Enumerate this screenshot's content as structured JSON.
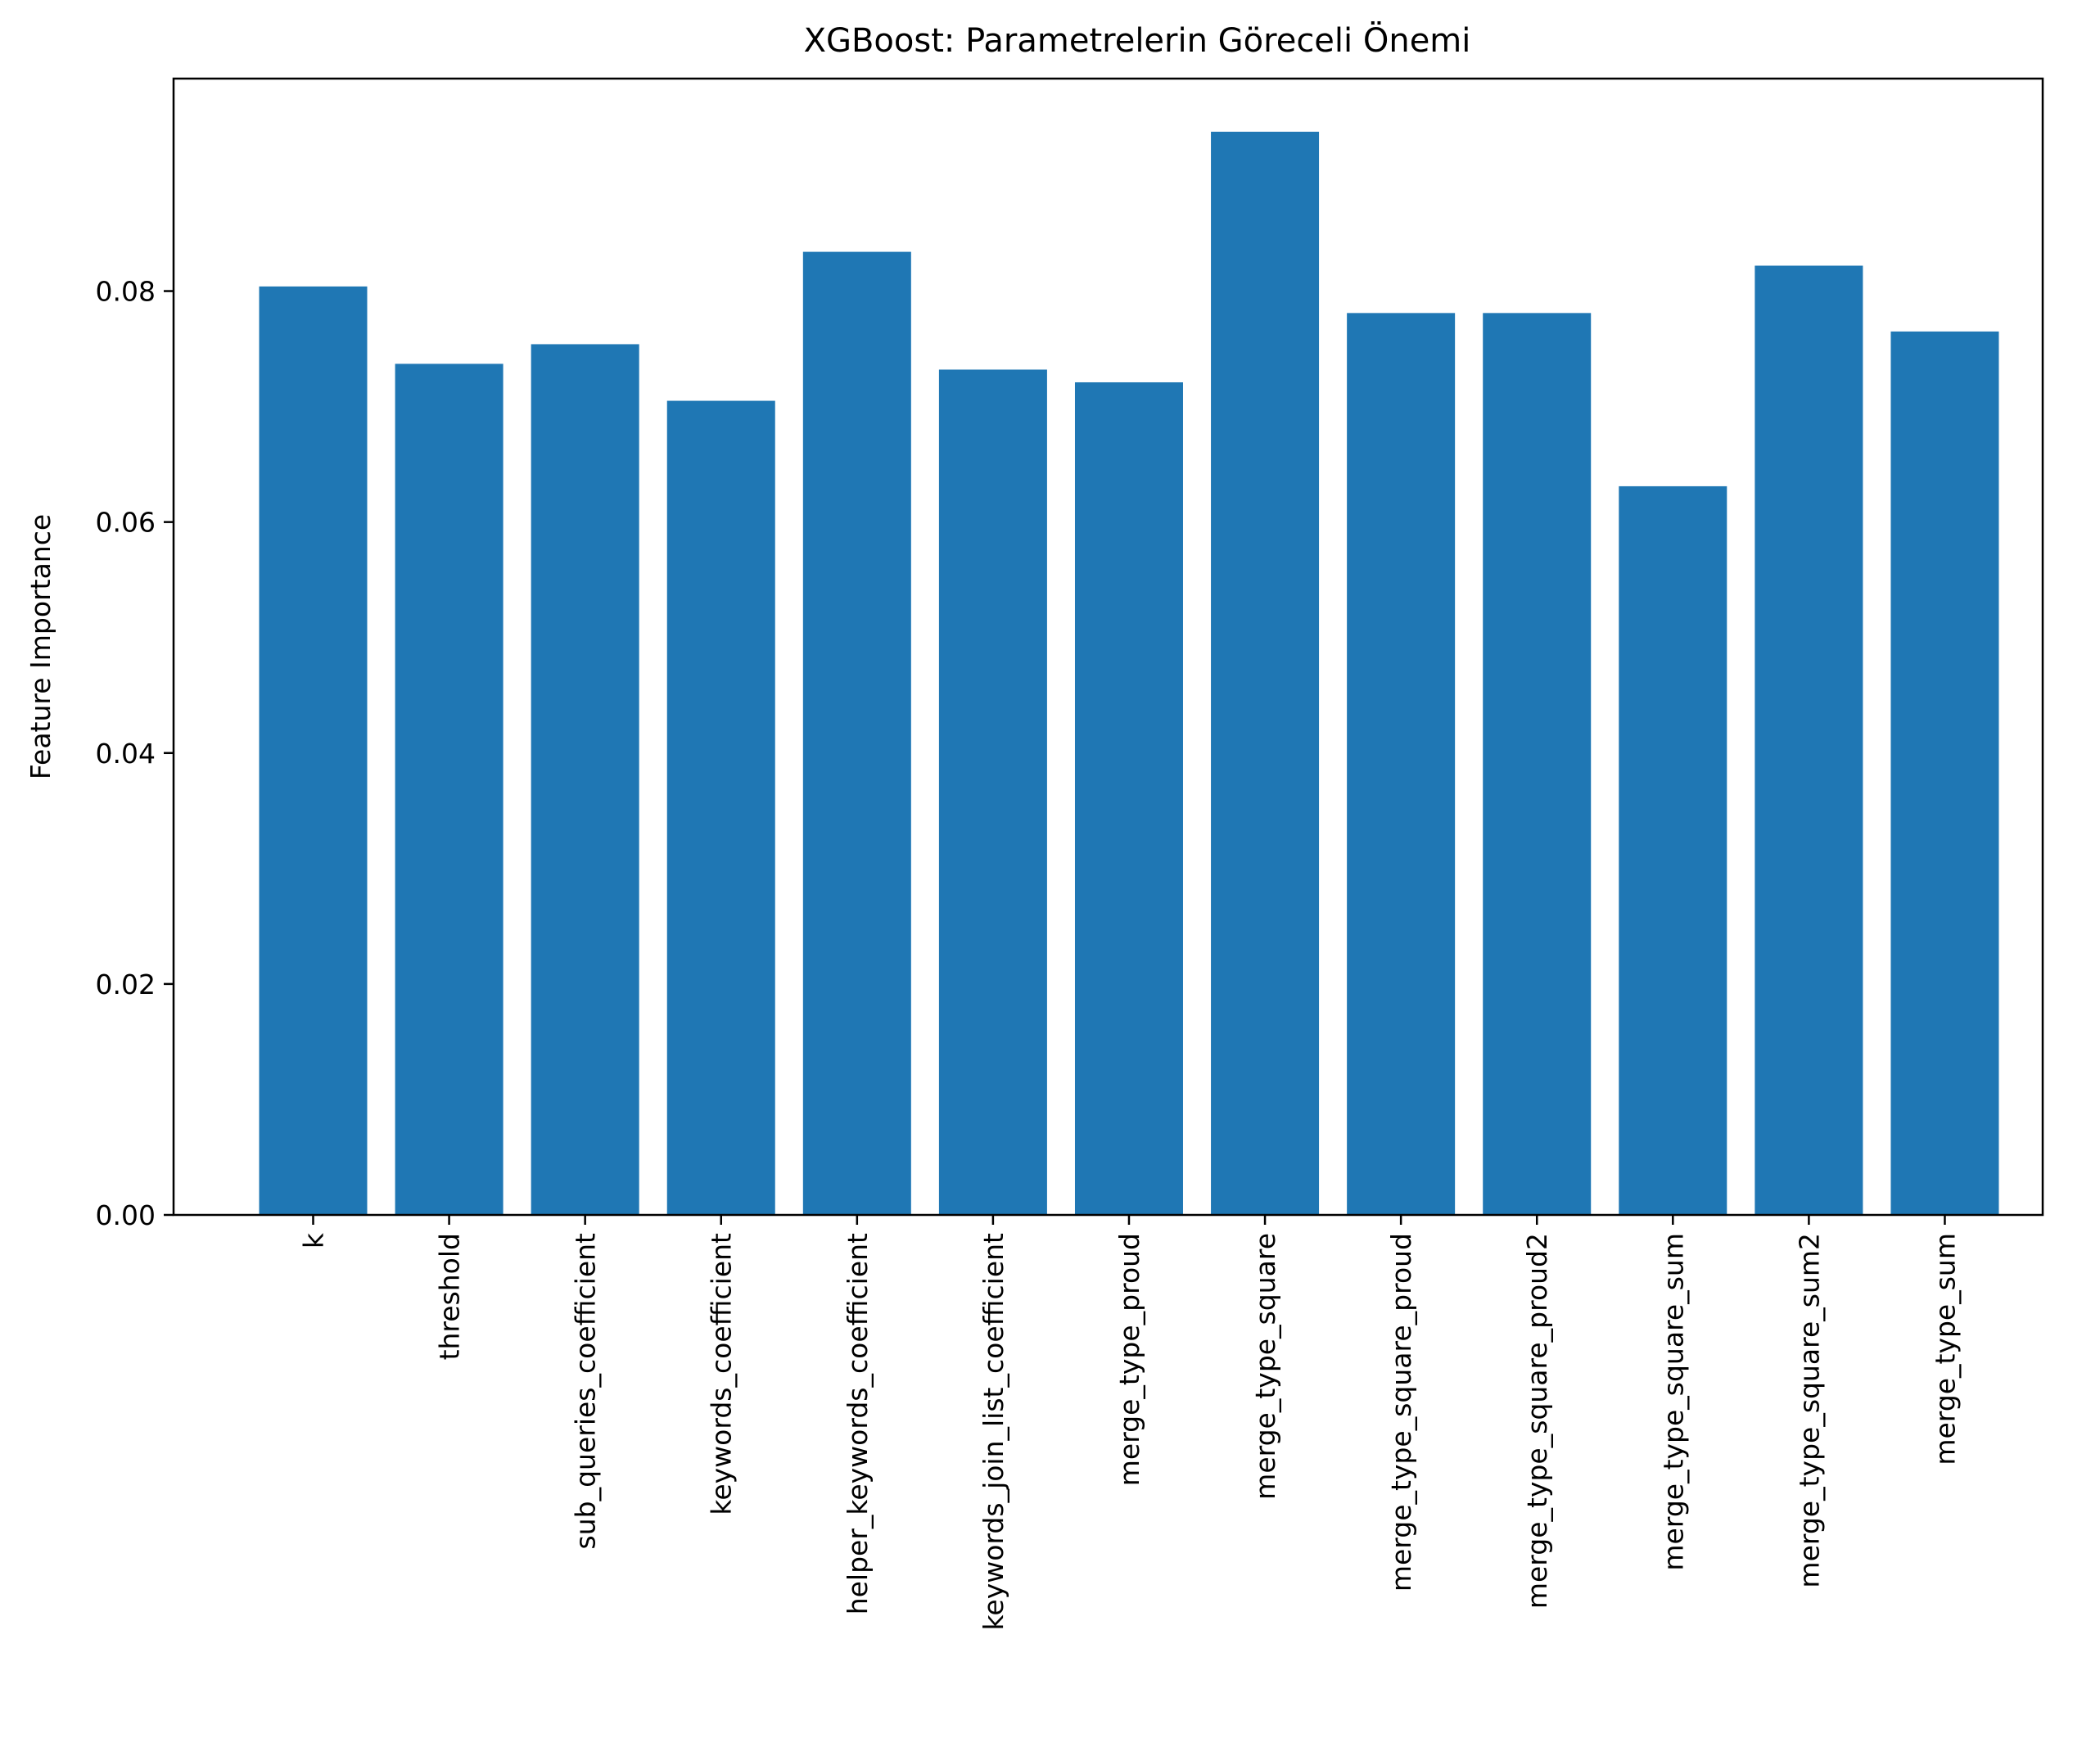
{
  "chart_data": {
    "type": "bar",
    "title": "XGBoost: Parametrelerin Göreceli Önemi",
    "xlabel": "",
    "ylabel": "Feature Importance",
    "categories": [
      "k",
      "threshold",
      "sub_queries_coefficient",
      "keywords_coefficient",
      "helper_keywords_coefficient",
      "keywords_join_list_coefficient",
      "merge_type_proud",
      "merge_type_square",
      "merge_type_square_proud",
      "merge_type_square_proud2",
      "merge_type_square_sum",
      "merge_type_square_sum2",
      "merge_type_sum"
    ],
    "values": [
      0.0804,
      0.0737,
      0.0754,
      0.0705,
      0.0834,
      0.0732,
      0.0721,
      0.0938,
      0.0781,
      0.0781,
      0.0631,
      0.0822,
      0.0765
    ],
    "ylim": [
      0,
      0.0984
    ],
    "yticks": [
      0.0,
      0.02,
      0.04,
      0.06,
      0.08
    ],
    "ytick_labels": [
      "0.00",
      "0.02",
      "0.04",
      "0.06",
      "0.08"
    ],
    "bar_color": "#1f77b4",
    "grid": false,
    "legend": "none"
  }
}
